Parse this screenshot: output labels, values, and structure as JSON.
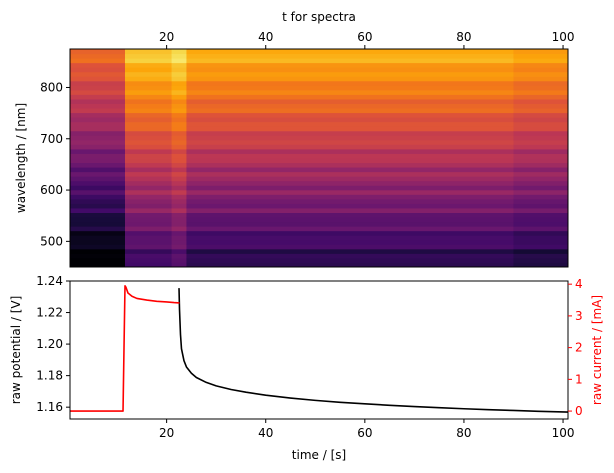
{
  "chart_data": [
    {
      "type": "heatmap",
      "title": "",
      "xlabel": "t for spectra",
      "ylabel": "wavelength / [nm]",
      "xlim": [
        0.5,
        101
      ],
      "ylim": [
        450,
        875
      ],
      "x_ticks": [
        20,
        40,
        60,
        80,
        100
      ],
      "y_ticks": [
        500,
        600,
        700,
        800
      ],
      "x_tick_labels": [
        "20",
        "40",
        "60",
        "80",
        "100"
      ],
      "y_tick_labels": [
        "500",
        "600",
        "700",
        "800"
      ],
      "colormap": "inferno",
      "x_axis_position": "top",
      "segments": [
        {
          "x_start": 0.5,
          "x_end": 11.6,
          "brightness_offset": -0.16
        },
        {
          "x_start": 11.6,
          "x_end": 21.0,
          "brightness_offset": 0.05
        },
        {
          "x_start": 21.0,
          "x_end": 24.0,
          "brightness_offset": 0.1
        },
        {
          "x_start": 24.0,
          "x_end": 90.0,
          "brightness_offset": 0.0
        },
        {
          "x_start": 90.0,
          "x_end": 101,
          "brightness_offset": -0.03
        }
      ]
    },
    {
      "type": "line",
      "title": "",
      "xlabel": "time / [s]",
      "ylabel": "raw potential / [V]",
      "y2label": "raw current / [mA]",
      "xlim": [
        0.5,
        101
      ],
      "ylim": [
        1.1525,
        1.24
      ],
      "y2lim": [
        -0.25,
        4.1
      ],
      "x_ticks": [
        20,
        40,
        60,
        80,
        100
      ],
      "x_tick_labels": [
        "20",
        "40",
        "60",
        "80",
        "100"
      ],
      "y_ticks": [
        1.16,
        1.18,
        1.2,
        1.22,
        1.24
      ],
      "y_tick_labels": [
        "1.16",
        "1.18",
        "1.20",
        "1.22",
        "1.24"
      ],
      "y2_ticks": [
        0,
        1,
        2,
        3,
        4
      ],
      "y2_tick_labels": [
        "0",
        "1",
        "2",
        "3",
        "4"
      ],
      "series": [
        {
          "axis": "left",
          "color": "#000000",
          "x": [
            22.5,
            22.6,
            22.8,
            23.0,
            23.5,
            24,
            25,
            26,
            28,
            30,
            33,
            36,
            40,
            45,
            50,
            55,
            60,
            65,
            70,
            75,
            80,
            85,
            90,
            95,
            101
          ],
          "values": [
            1.2355,
            1.222,
            1.206,
            1.197,
            1.1895,
            1.1855,
            1.1815,
            1.1788,
            1.1757,
            1.1735,
            1.1712,
            1.1695,
            1.1676,
            1.1658,
            1.1643,
            1.1631,
            1.1621,
            1.1612,
            1.1604,
            1.1597,
            1.159,
            1.1584,
            1.1579,
            1.1574,
            1.1569
          ]
        },
        {
          "axis": "right",
          "color": "#ff0000",
          "x": [
            0.5,
            11.2,
            11.4,
            11.6,
            11.8,
            12.2,
            13,
            14,
            16,
            18,
            20,
            21.5,
            22.6
          ],
          "values": [
            0.0,
            0.0,
            2.0,
            3.95,
            3.9,
            3.72,
            3.62,
            3.55,
            3.5,
            3.46,
            3.44,
            3.42,
            3.41
          ]
        }
      ]
    }
  ]
}
